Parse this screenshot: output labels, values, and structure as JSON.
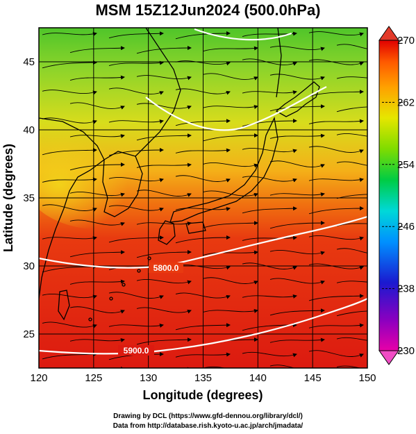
{
  "title": "MSM 15Z12Jun2024 (500.0hPa)",
  "x_axis": {
    "label": "Longitude (degrees)",
    "ticks": [
      "120",
      "125",
      "130",
      "135",
      "140",
      "145",
      "150"
    ],
    "range": [
      120,
      150
    ]
  },
  "y_axis": {
    "label": "Latitude  (degrees)",
    "ticks": [
      "25",
      "30",
      "35",
      "40",
      "45"
    ],
    "range": [
      22.5,
      47.5
    ]
  },
  "colorbar": {
    "ticks": [
      "270",
      "262",
      "254",
      "246",
      "238",
      "230"
    ],
    "range": [
      230,
      270
    ],
    "colors": [
      "#e8009b",
      "#8a00c0",
      "#1a1ad0",
      "#0090ff",
      "#00d8d8",
      "#00cc44",
      "#7fdc00",
      "#e6e600",
      "#ffa000",
      "#ff5a00",
      "#e00000"
    ]
  },
  "contours": [
    {
      "label": "5800.0"
    },
    {
      "label": "5900.0"
    }
  ],
  "colors": {
    "coast": "#000000",
    "contour": "#ffffff",
    "grid": "#000000"
  },
  "credits": {
    "line1": "Drawing by DCL (https://www.gfd-dennou.org/library/dcl/)",
    "line2": "Data from http://database.rish.kyoto-u.ac.jp/arch/jmadata/"
  }
}
